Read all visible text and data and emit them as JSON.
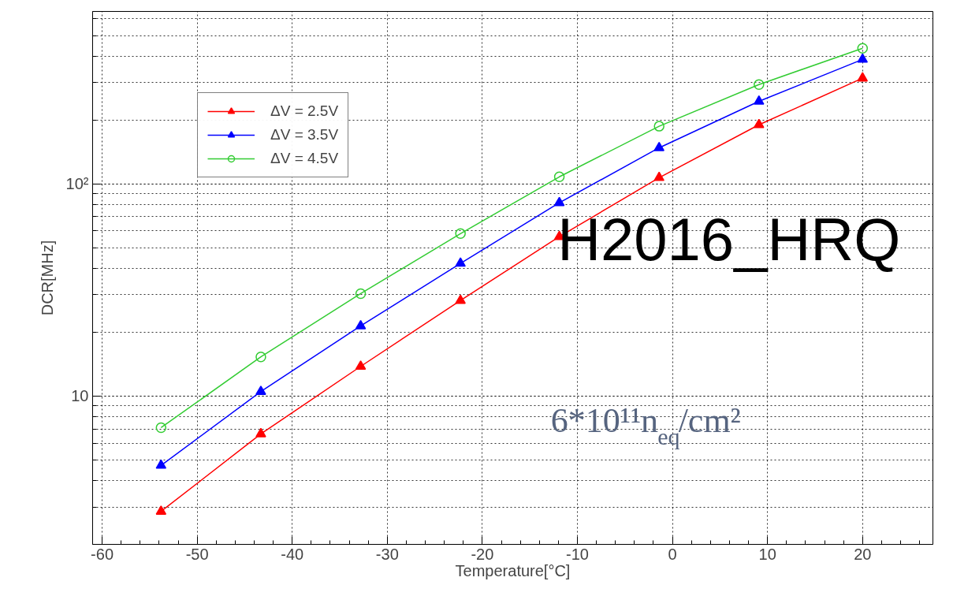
{
  "chart_data": {
    "type": "line",
    "xlabel": "Temperature[°C]",
    "ylabel": "DCR[MHz]",
    "x": [
      -53.8,
      -43.3,
      -32.8,
      -22.3,
      -11.9,
      -1.4,
      9.1,
      20
    ],
    "series": [
      {
        "name": "ΔV = 2.5V",
        "color": "#ff0000",
        "marker": "triangle",
        "values": [
          2.86,
          6.63,
          13.8,
          28.2,
          56.4,
          107,
          190,
          315
        ]
      },
      {
        "name": "ΔV = 3.5V",
        "color": "#0000ff",
        "marker": "triangle",
        "values": [
          4.71,
          10.5,
          21.4,
          42.2,
          81.5,
          148,
          245,
          386
        ]
      },
      {
        "name": "ΔV = 4.5V",
        "color": "#33cc33",
        "marker": "circle",
        "values": [
          7.1,
          15.3,
          30.4,
          58.3,
          108,
          187,
          294,
          436
        ]
      }
    ],
    "xlim": [
      -61,
      27.4
    ],
    "xticks": [
      -60,
      -50,
      -40,
      -30,
      -20,
      -10,
      0,
      10,
      20
    ],
    "ylim": [
      2,
      650
    ],
    "yticks": [
      10,
      {
        "value": 100,
        "label": "10²"
      }
    ],
    "log": "y",
    "grid": true,
    "legend": "top left",
    "line_style": "solid",
    "annotations": [
      "H2016_HRQ",
      "6*10¹¹n$_{eq}$/cm²"
    ]
  }
}
